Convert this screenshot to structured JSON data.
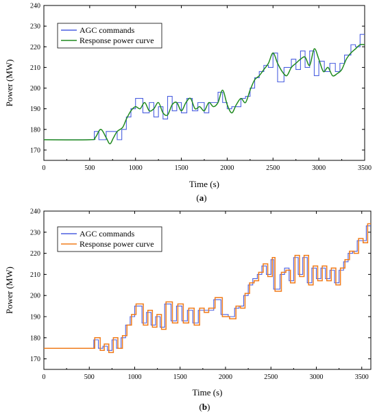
{
  "chart_data": [
    {
      "type": "line",
      "panel_label": "(a)",
      "xlabel": "Time (s)",
      "ylabel": "Power (MW)",
      "xlim": [
        0,
        3500
      ],
      "ylim": [
        165,
        240
      ],
      "xticks": [
        0,
        500,
        1000,
        1500,
        2000,
        2500,
        3000,
        3500
      ],
      "yticks": [
        170,
        180,
        190,
        200,
        210,
        220,
        230,
        240
      ],
      "legend_position": "top-left",
      "series": [
        {
          "name": "AGC commands",
          "color": "#4a5fe0",
          "step": true,
          "x": [
            0,
            550,
            600,
            680,
            800,
            850,
            900,
            950,
            1000,
            1080,
            1150,
            1200,
            1250,
            1300,
            1350,
            1400,
            1450,
            1500,
            1560,
            1620,
            1680,
            1750,
            1800,
            1850,
            1900,
            1950,
            2000,
            2050,
            2100,
            2150,
            2200,
            2250,
            2300,
            2350,
            2400,
            2450,
            2500,
            2550,
            2620,
            2700,
            2750,
            2800,
            2850,
            2900,
            2950,
            3000,
            3060,
            3120,
            3180,
            3230,
            3280,
            3350,
            3400,
            3450,
            3480
          ],
          "y": [
            175,
            179,
            175,
            179,
            175,
            180,
            186,
            190,
            195,
            188,
            193,
            186,
            191,
            185,
            196,
            189,
            193,
            188,
            195,
            189,
            193,
            188,
            193,
            193,
            198,
            193,
            190,
            191,
            191,
            195,
            196,
            200,
            205,
            208,
            211,
            210,
            217,
            203,
            210,
            214,
            209,
            218,
            210,
            218,
            206,
            213,
            208,
            212,
            208,
            212,
            216,
            221,
            220,
            226,
            226
          ]
        },
        {
          "name": "Response power curve",
          "color": "#1f8a1f",
          "step": false,
          "x": [
            0,
            500,
            560,
            620,
            680,
            720,
            760,
            800,
            860,
            900,
            950,
            1000,
            1050,
            1100,
            1150,
            1200,
            1250,
            1300,
            1350,
            1400,
            1450,
            1500,
            1550,
            1600,
            1650,
            1700,
            1750,
            1800,
            1850,
            1900,
            1950,
            2000,
            2050,
            2100,
            2150,
            2200,
            2250,
            2300,
            2350,
            2400,
            2450,
            2500,
            2550,
            2600,
            2650,
            2700,
            2750,
            2800,
            2850,
            2900,
            2950,
            3000,
            3050,
            3100,
            3150,
            3200,
            3250,
            3300,
            3350,
            3400,
            3450,
            3500
          ],
          "y": [
            175,
            175,
            176,
            180,
            176,
            173,
            176,
            179,
            181,
            185,
            189,
            191,
            190,
            193,
            189,
            190,
            193,
            188,
            187,
            192,
            193,
            189,
            193,
            195,
            190,
            191,
            189,
            193,
            191,
            193,
            199,
            192,
            188,
            192,
            195,
            193,
            199,
            204,
            206,
            209,
            212,
            217,
            212,
            208,
            206,
            210,
            212,
            214,
            215,
            211,
            219,
            214,
            208,
            210,
            206,
            207,
            209,
            214,
            217,
            219,
            221,
            221
          ]
        }
      ]
    },
    {
      "type": "line",
      "panel_label": "(b)",
      "xlabel": "Time (s)",
      "ylabel": "Power (MW)",
      "xlim": [
        0,
        3600
      ],
      "ylim": [
        165,
        240
      ],
      "xticks": [
        0,
        500,
        1000,
        1500,
        2000,
        2500,
        3000,
        3500
      ],
      "yticks": [
        170,
        180,
        190,
        200,
        210,
        220,
        230,
        240
      ],
      "legend_position": "top-left",
      "series": [
        {
          "name": "AGC commands",
          "color": "#4a5fe0",
          "step": true,
          "x": [
            0,
            550,
            600,
            650,
            700,
            750,
            800,
            850,
            900,
            950,
            1000,
            1080,
            1130,
            1180,
            1230,
            1280,
            1330,
            1400,
            1460,
            1520,
            1580,
            1640,
            1700,
            1750,
            1800,
            1870,
            1950,
            2030,
            2100,
            2150,
            2200,
            2250,
            2300,
            2350,
            2400,
            2450,
            2500,
            2530,
            2600,
            2650,
            2700,
            2750,
            2800,
            2850,
            2900,
            2950,
            3000,
            3050,
            3100,
            3150,
            3200,
            3250,
            3300,
            3350,
            3400,
            3450,
            3500,
            3550
          ],
          "y": [
            175,
            179,
            175,
            176,
            174,
            179,
            175,
            180,
            186,
            190,
            195,
            187,
            192,
            186,
            190,
            185,
            196,
            188,
            195,
            188,
            193,
            187,
            193,
            193,
            193,
            198,
            191,
            190,
            194,
            195,
            200,
            205,
            208,
            210,
            214,
            210,
            217,
            203,
            210,
            213,
            207,
            218,
            210,
            218,
            206,
            213,
            208,
            213,
            208,
            212,
            206,
            212,
            216,
            220,
            221,
            226,
            226,
            233
          ]
        },
        {
          "name": "Response power curve",
          "color": "#f07b1a",
          "step": true,
          "x": [
            0,
            560,
            620,
            665,
            715,
            765,
            815,
            865,
            915,
            965,
            1015,
            1095,
            1145,
            1195,
            1245,
            1295,
            1345,
            1415,
            1475,
            1535,
            1595,
            1655,
            1715,
            1765,
            1815,
            1885,
            1965,
            2045,
            2115,
            2165,
            2215,
            2265,
            2315,
            2365,
            2415,
            2465,
            2515,
            2545,
            2615,
            2665,
            2715,
            2765,
            2815,
            2865,
            2915,
            2965,
            3015,
            3065,
            3115,
            3165,
            3215,
            3265,
            3315,
            3365,
            3415,
            3465,
            3515,
            3565
          ],
          "y": [
            175,
            180,
            174,
            177,
            173,
            180,
            175,
            181,
            186,
            191,
            196,
            186,
            193,
            185,
            191,
            184,
            197,
            187,
            196,
            187,
            194,
            186,
            194,
            192,
            194,
            199,
            190,
            189,
            195,
            194,
            201,
            206,
            207,
            211,
            215,
            209,
            218,
            202,
            211,
            212,
            206,
            219,
            209,
            219,
            205,
            214,
            207,
            214,
            207,
            213,
            205,
            213,
            217,
            221,
            220,
            227,
            225,
            234
          ]
        }
      ]
    }
  ]
}
